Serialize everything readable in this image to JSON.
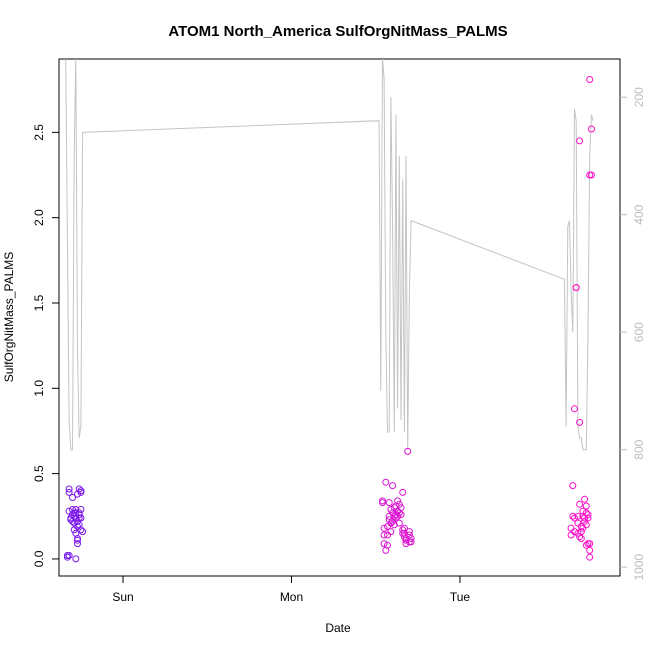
{
  "chart_data": {
    "type": "scatter",
    "title": "ATOM1 North_America SulfOrgNitMass_PALMS",
    "xlabel": "Date",
    "ylabel": "SulfOrgNitMass_PALMS",
    "x_ticks": [
      "Sun",
      "Mon",
      "Tue"
    ],
    "y_ticks": [
      "0.0",
      "0.5",
      "1.0",
      "1.5",
      "2.0",
      "2.5"
    ],
    "y_right_ticks": [
      "200",
      "400",
      "600",
      "800",
      "1000"
    ],
    "x_domain_days": [
      -0.38,
      2.95
    ],
    "xlim_labels": [
      "Sat",
      "Wed"
    ],
    "ylim": [
      -0.1,
      2.93
    ],
    "y_right_lim": [
      1015,
      135
    ],
    "y_right_reversed": true,
    "grid": false,
    "colors": {
      "line": "#c4c4c4",
      "point_early": "#6a1cf0",
      "point_late": "#ff10c8",
      "frame": "#000000",
      "right_axis": "#bdbdbd"
    },
    "series": [
      {
        "points": [
          [
            -0.33,
            0.02
          ],
          [
            -0.33,
            0.01
          ],
          [
            -0.32,
            0.02
          ],
          [
            -0.32,
            0.39
          ],
          [
            -0.32,
            0.41
          ],
          [
            -0.32,
            0.28
          ],
          [
            -0.31,
            0.24
          ],
          [
            -0.31,
            0.23
          ],
          [
            -0.3,
            0.26
          ],
          [
            -0.3,
            0.22
          ],
          [
            -0.3,
            0.29
          ],
          [
            -0.3,
            0.36
          ],
          [
            -0.29,
            0.27
          ],
          [
            -0.29,
            0.21
          ],
          [
            -0.29,
            0.25
          ],
          [
            -0.29,
            0.17
          ],
          [
            -0.28,
            0.15
          ],
          [
            -0.28,
            0.24
          ],
          [
            -0.28,
            0.0
          ],
          [
            -0.28,
            0.29
          ],
          [
            -0.28,
            0.27
          ],
          [
            -0.27,
            0.11
          ],
          [
            -0.27,
            0.12
          ],
          [
            -0.27,
            0.09
          ],
          [
            -0.27,
            0.22
          ],
          [
            -0.27,
            0.19
          ],
          [
            -0.27,
            0.38
          ],
          [
            -0.26,
            0.24
          ],
          [
            -0.26,
            0.27
          ],
          [
            -0.26,
            0.26
          ],
          [
            -0.26,
            0.2
          ],
          [
            -0.26,
            0.41
          ],
          [
            -0.25,
            0.29
          ],
          [
            -0.25,
            0.39
          ],
          [
            -0.25,
            0.4
          ],
          [
            -0.25,
            0.24
          ],
          [
            -0.25,
            0.17
          ],
          [
            -0.24,
            0.16
          ],
          [
            1.54,
            0.34
          ],
          [
            1.54,
            0.33
          ],
          [
            1.55,
            0.14
          ],
          [
            1.55,
            0.18
          ],
          [
            1.55,
            0.09
          ],
          [
            1.56,
            0.05
          ],
          [
            1.56,
            0.45
          ],
          [
            1.57,
            0.19
          ],
          [
            1.57,
            0.14
          ],
          [
            1.57,
            0.08
          ],
          [
            1.58,
            0.25
          ],
          [
            1.58,
            0.33
          ],
          [
            1.58,
            0.23
          ],
          [
            1.59,
            0.29
          ],
          [
            1.59,
            0.21
          ],
          [
            1.59,
            0.16
          ],
          [
            1.6,
            0.22
          ],
          [
            1.6,
            0.27
          ],
          [
            1.6,
            0.43
          ],
          [
            1.61,
            0.3
          ],
          [
            1.61,
            0.25
          ],
          [
            1.61,
            0.2
          ],
          [
            1.62,
            0.26
          ],
          [
            1.62,
            0.31
          ],
          [
            1.62,
            0.24
          ],
          [
            1.63,
            0.28
          ],
          [
            1.63,
            0.34
          ],
          [
            1.63,
            0.25
          ],
          [
            1.64,
            0.27
          ],
          [
            1.64,
            0.21
          ],
          [
            1.64,
            0.32
          ],
          [
            1.65,
            0.3
          ],
          [
            1.65,
            0.26
          ],
          [
            1.66,
            0.39
          ],
          [
            1.66,
            0.15
          ],
          [
            1.66,
            0.17
          ],
          [
            1.67,
            0.15
          ],
          [
            1.67,
            0.13
          ],
          [
            1.67,
            0.18
          ],
          [
            1.68,
            0.11
          ],
          [
            1.68,
            0.09
          ],
          [
            1.68,
            0.12
          ],
          [
            1.69,
            0.63
          ],
          [
            1.7,
            0.1
          ],
          [
            1.7,
            0.14
          ],
          [
            1.7,
            0.16
          ],
          [
            1.71,
            0.12
          ],
          [
            1.71,
            0.1
          ],
          [
            2.66,
            0.14
          ],
          [
            2.66,
            0.18
          ],
          [
            2.67,
            0.43
          ],
          [
            2.67,
            0.25
          ],
          [
            2.68,
            0.24
          ],
          [
            2.68,
            0.16
          ],
          [
            2.68,
            0.88
          ],
          [
            2.69,
            1.59
          ],
          [
            2.69,
            1.59
          ],
          [
            2.7,
            0.25
          ],
          [
            2.7,
            0.21
          ],
          [
            2.7,
            0.15
          ],
          [
            2.71,
            0.32
          ],
          [
            2.71,
            0.13
          ],
          [
            2.71,
            0.8
          ],
          [
            2.71,
            2.45
          ],
          [
            2.72,
            0.12
          ],
          [
            2.72,
            0.16
          ],
          [
            2.72,
            0.19
          ],
          [
            2.73,
            0.28
          ],
          [
            2.73,
            0.25
          ],
          [
            2.73,
            0.18
          ],
          [
            2.74,
            0.22
          ],
          [
            2.74,
            0.24
          ],
          [
            2.74,
            0.35
          ],
          [
            2.75,
            0.2
          ],
          [
            2.75,
            0.27
          ],
          [
            2.75,
            0.31
          ],
          [
            2.75,
            0.08
          ],
          [
            2.76,
            0.24
          ],
          [
            2.76,
            0.26
          ],
          [
            2.76,
            0.09
          ],
          [
            2.77,
            0.05
          ],
          [
            2.77,
            0.09
          ],
          [
            2.77,
            0.01
          ],
          [
            2.77,
            2.25
          ],
          [
            2.77,
            2.81
          ],
          [
            2.78,
            2.25
          ],
          [
            2.78,
            2.52
          ]
        ]
      },
      {
        "y_axis": "right",
        "points": [
          [
            -0.34,
            130
          ],
          [
            -0.32,
            750
          ],
          [
            -0.31,
            800
          ],
          [
            -0.3,
            800
          ],
          [
            -0.29,
            300
          ],
          [
            -0.28,
            130
          ],
          [
            -0.27,
            630
          ],
          [
            -0.26,
            780
          ],
          [
            -0.25,
            760
          ],
          [
            -0.24,
            260
          ],
          [
            1.52,
            240
          ],
          [
            1.53,
            700
          ],
          [
            1.54,
            130
          ],
          [
            1.55,
            170
          ],
          [
            1.56,
            600
          ],
          [
            1.57,
            770
          ],
          [
            1.58,
            770
          ],
          [
            1.59,
            200
          ],
          [
            1.6,
            420
          ],
          [
            1.61,
            770
          ],
          [
            1.62,
            230
          ],
          [
            1.63,
            730
          ],
          [
            1.64,
            300
          ],
          [
            1.65,
            750
          ],
          [
            1.66,
            340
          ],
          [
            1.67,
            770
          ],
          [
            1.68,
            300
          ],
          [
            1.69,
            800
          ],
          [
            1.7,
            530
          ],
          [
            1.71,
            410
          ],
          [
            2.62,
            510
          ],
          [
            2.63,
            760
          ],
          [
            2.64,
            420
          ],
          [
            2.65,
            410
          ],
          [
            2.66,
            530
          ],
          [
            2.67,
            600
          ],
          [
            2.68,
            220
          ],
          [
            2.69,
            240
          ],
          [
            2.7,
            760
          ],
          [
            2.71,
            780
          ],
          [
            2.72,
            780
          ],
          [
            2.73,
            800
          ],
          [
            2.74,
            800
          ],
          [
            2.75,
            800
          ],
          [
            2.76,
            600
          ],
          [
            2.77,
            300
          ],
          [
            2.78,
            230
          ],
          [
            2.79,
            240
          ]
        ]
      }
    ]
  }
}
